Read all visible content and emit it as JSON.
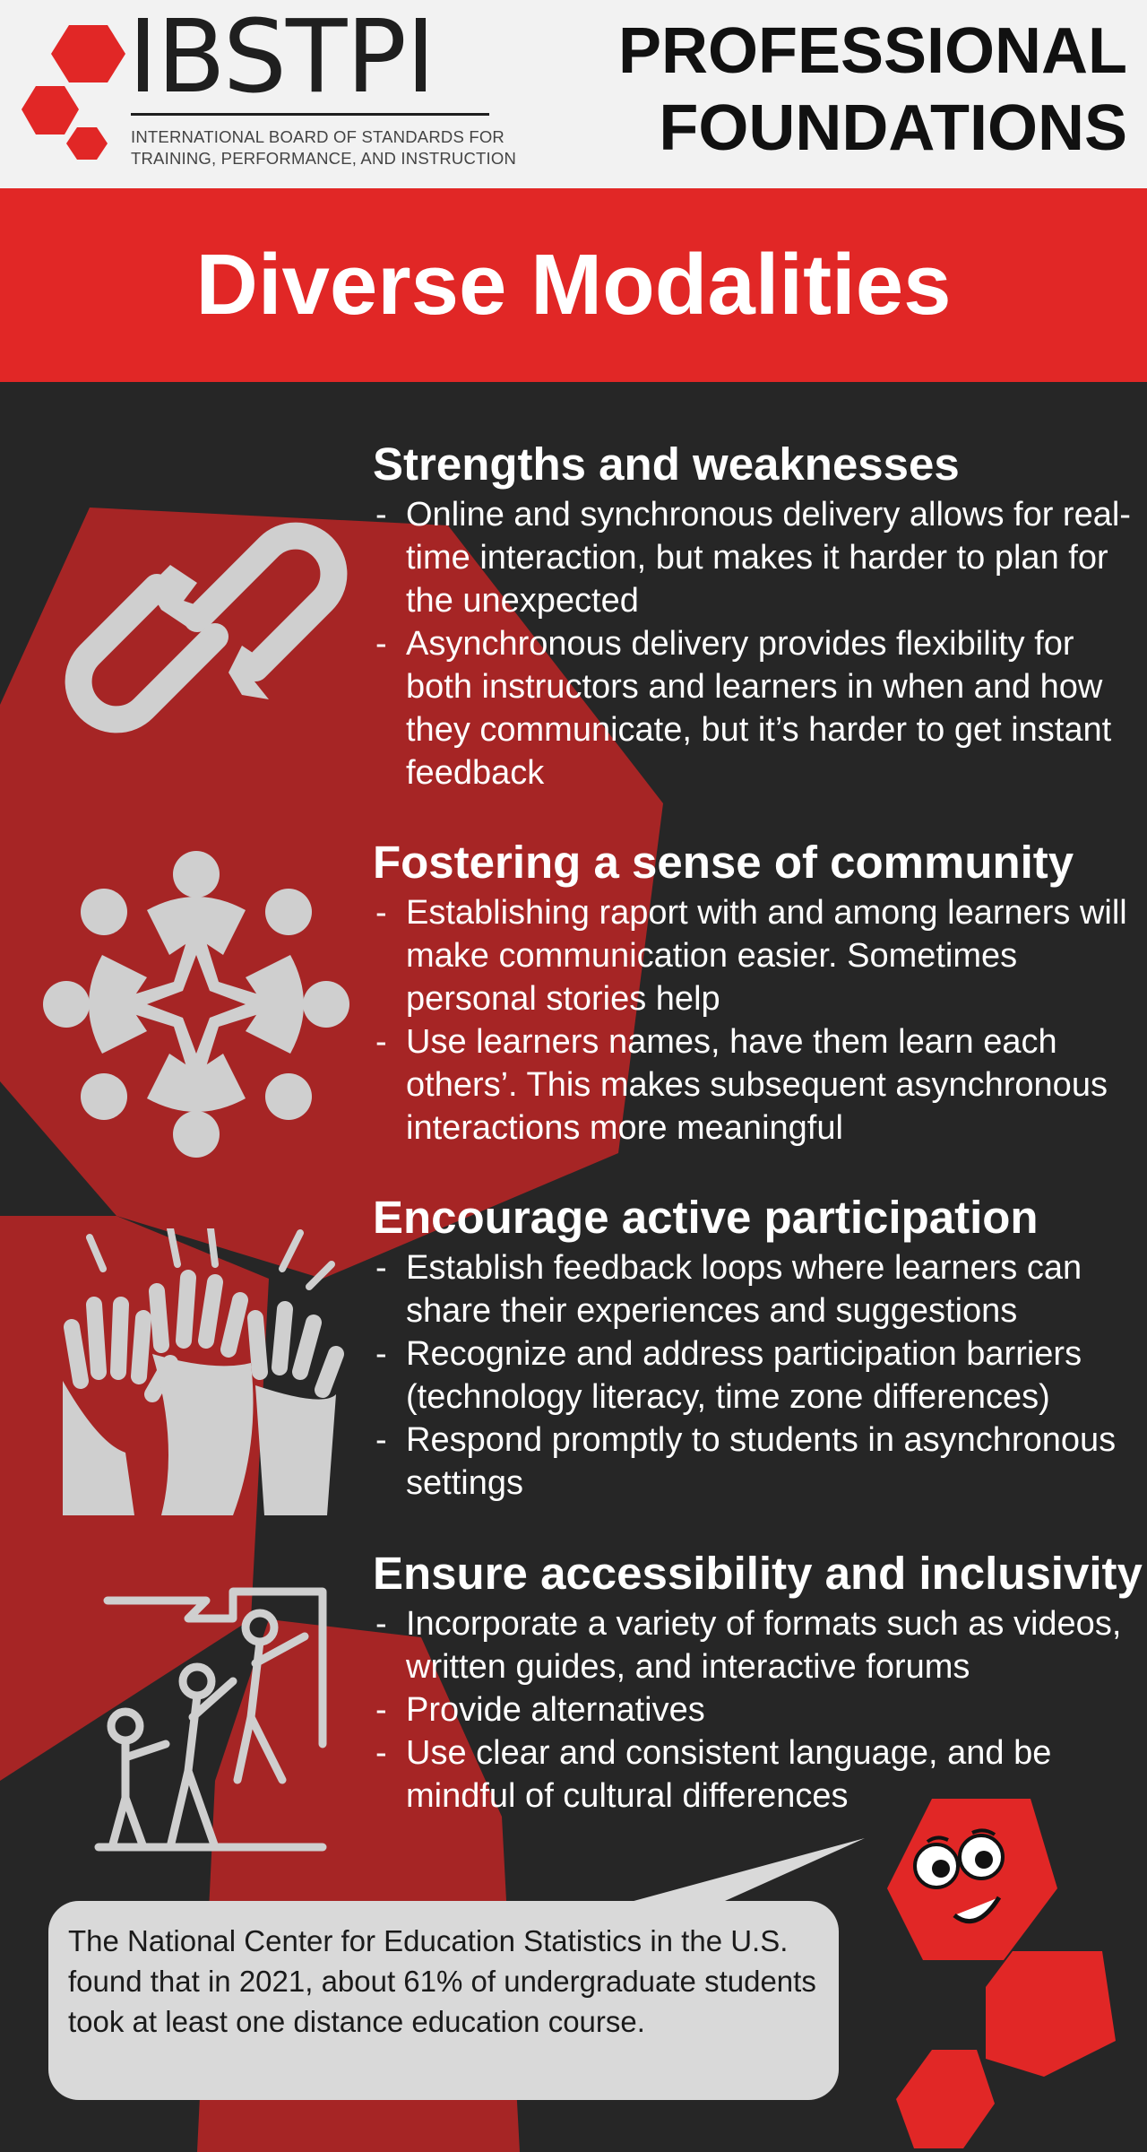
{
  "header": {
    "logo": {
      "wordmark": "IBSTPI",
      "subtitle_line1": "INTERNATIONAL BOARD OF STANDARDS FOR",
      "subtitle_line2": "TRAINING, PERFORMANCE, AND INSTRUCTION"
    },
    "series_title_line1": "PROFESSIONAL",
    "series_title_line2": "FOUNDATIONS"
  },
  "banner": {
    "title": "Diverse Modalities"
  },
  "sections": [
    {
      "heading": "Strengths and weaknesses",
      "icon": "broken-chain-icon",
      "bullets": [
        "Online and synchronous delivery allows for real-time interaction, but makes it harder to plan for the unexpected",
        "Asynchronous delivery provides flexibility for both instructors and learners in when and how they communicate, but it’s harder to get instant feedback"
      ]
    },
    {
      "heading": "Fostering a sense of community",
      "icon": "community-circle-icon",
      "bullets": [
        "Establishing raport with and among learners will make communication easier. Sometimes personal stories help",
        "Use learners names, have them learn each others’. This makes subsequent asynchronous interactions more meaningful"
      ]
    },
    {
      "heading": "Encourage active participation",
      "icon": "raised-hands-icon",
      "bullets": [
        "Establish feedback loops where learners can share their experiences and suggestions",
        "Recognize and address participation barriers (technology literacy, time zone differences)",
        "Respond promptly to students in asynchronous settings"
      ]
    },
    {
      "heading": "Ensure accessibility and inclusivity",
      "icon": "people-helping-climb-icon",
      "bullets": [
        "Incorporate a variety of formats such as videos, written guides, and interactive forums",
        "Provide alternatives",
        "Use clear and consistent language, and be mindful of cultural differences"
      ]
    }
  ],
  "callout": {
    "text": "The National Center for Education Statistics in the U.S. found that in 2021, about 61% of undergraduate students took at least one distance education course."
  },
  "colors": {
    "brand_red": "#e12726",
    "dark_red": "#a62525",
    "background": "#262626",
    "icon_gray": "#cfcfcf",
    "callout_bg": "#d9d9d9"
  }
}
